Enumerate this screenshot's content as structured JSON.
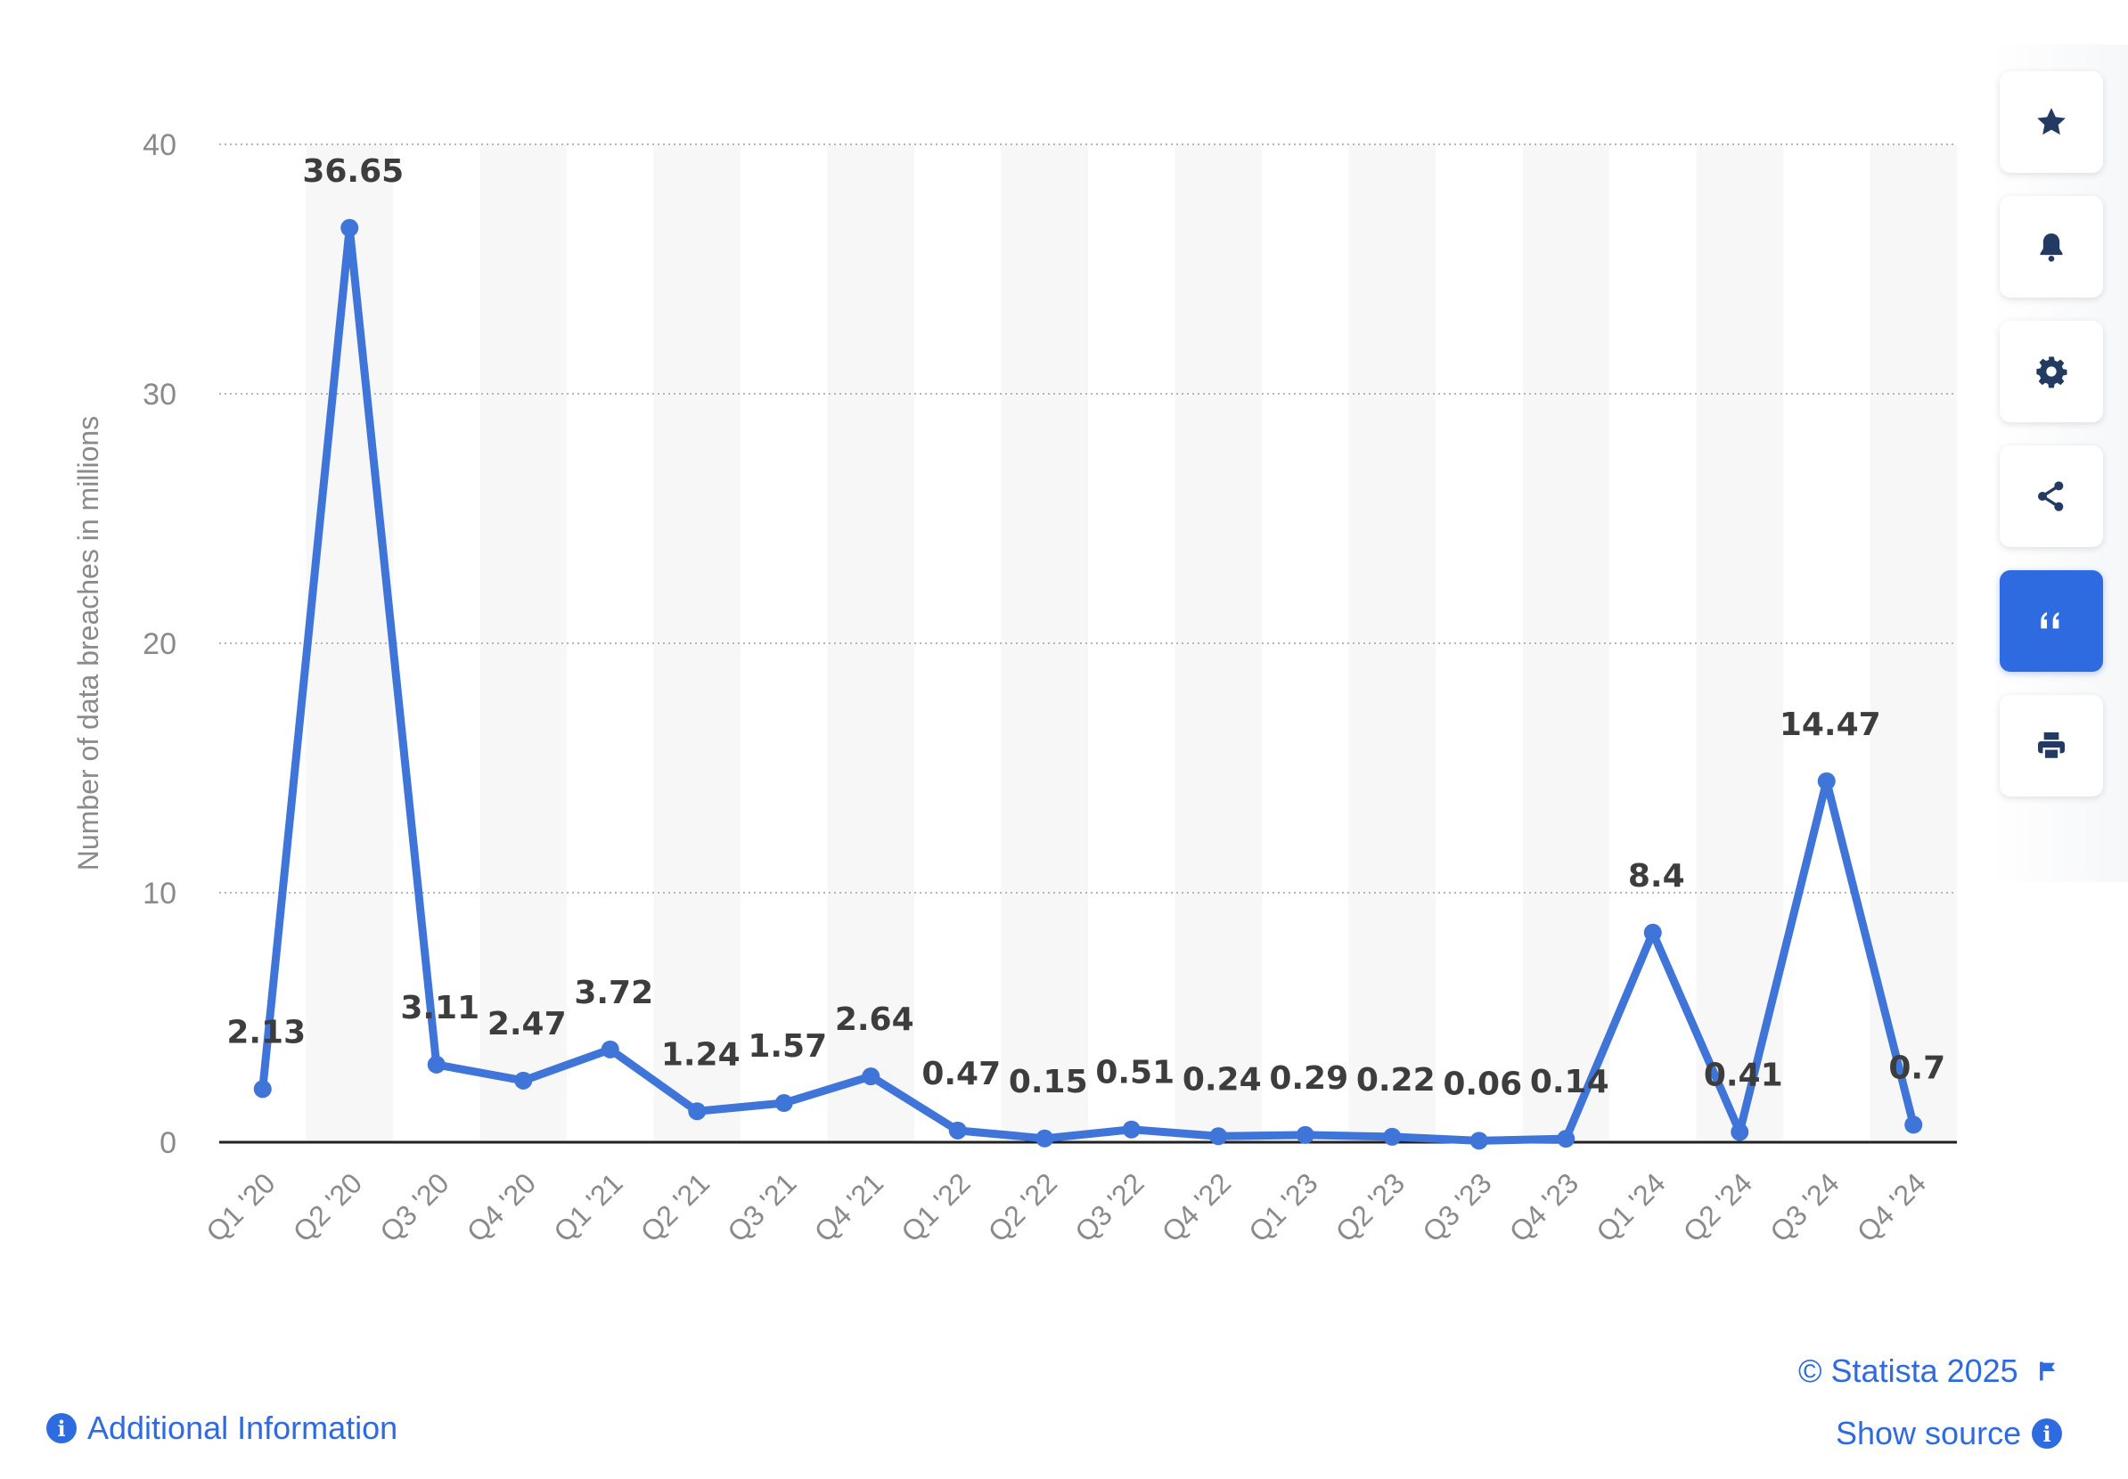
{
  "chart_data": {
    "type": "line",
    "title": "",
    "xlabel": "",
    "ylabel": "Number of data breaches in millions",
    "ylim": [
      0,
      40
    ],
    "yticks": [
      0,
      10,
      20,
      30,
      40
    ],
    "grid": true,
    "legend": "none",
    "categories": [
      "Q1 '20",
      "Q2 '20",
      "Q3 '20",
      "Q4 '20",
      "Q1 '21",
      "Q2 '21",
      "Q3 '21",
      "Q4 '21",
      "Q1 '22",
      "Q2 '22",
      "Q3 '22",
      "Q4 '22",
      "Q1 '23",
      "Q2 '23",
      "Q3 '23",
      "Q4 '23",
      "Q1 '24",
      "Q2 '24",
      "Q3 '24",
      "Q4 '24"
    ],
    "values": [
      2.13,
      36.65,
      3.11,
      2.47,
      3.72,
      1.24,
      1.57,
      2.64,
      0.47,
      0.15,
      0.51,
      0.24,
      0.29,
      0.22,
      0.06,
      0.14,
      8.4,
      0.41,
      14.47,
      0.7
    ],
    "series_color": "#3f74d9"
  },
  "toolbar": {
    "buttons": [
      {
        "name": "favorite-button",
        "icon": "star-icon"
      },
      {
        "name": "notification-button",
        "icon": "bell-icon"
      },
      {
        "name": "settings-button",
        "icon": "gear-icon"
      },
      {
        "name": "share-button",
        "icon": "share-icon"
      },
      {
        "name": "cite-button",
        "icon": "quote-icon",
        "active": true
      },
      {
        "name": "print-button",
        "icon": "printer-icon"
      }
    ],
    "accent": "#2f6be0"
  },
  "footer": {
    "copyright": "© Statista 2025",
    "show_source": "Show source",
    "additional_info": "Additional Information"
  }
}
